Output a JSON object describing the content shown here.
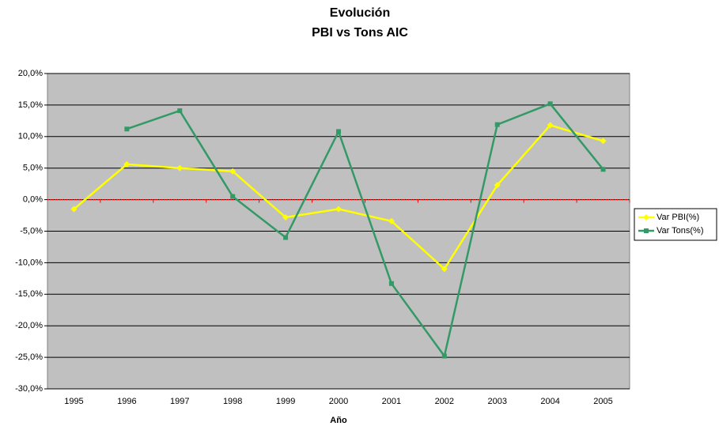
{
  "chart_data": {
    "type": "line",
    "title": "Evolución",
    "subtitle": "PBI vs Tons AIC",
    "x_label": "Año",
    "categories": [
      "1995",
      "1996",
      "1997",
      "1998",
      "1999",
      "2000",
      "2001",
      "2002",
      "2003",
      "2004",
      "2005"
    ],
    "series": [
      {
        "name": "Var PBI(%)",
        "color": "#ffff00",
        "marker": "diamond",
        "values": [
          -1.5,
          5.6,
          5.0,
          4.5,
          -2.8,
          -1.5,
          -3.4,
          -11.0,
          2.3,
          11.8,
          9.3
        ]
      },
      {
        "name": "Var Tons(%)",
        "color": "#339966",
        "marker": "square",
        "values": [
          null,
          11.2,
          14.1,
          0.5,
          -6.0,
          10.8,
          -13.3,
          -24.8,
          11.9,
          15.2,
          4.8
        ]
      }
    ],
    "ylim": [
      -30,
      20
    ],
    "yticks": [
      {
        "value": -30,
        "label": "-30,0%"
      },
      {
        "value": -25,
        "label": "-25,0%"
      },
      {
        "value": -20,
        "label": "-20,0%"
      },
      {
        "value": -15,
        "label": "-15,0%"
      },
      {
        "value": -10,
        "label": "-10,0%"
      },
      {
        "value": -5,
        "label": "-5,0%"
      },
      {
        "value": 0,
        "label": "0,0%"
      },
      {
        "value": 5,
        "label": "5,0%"
      },
      {
        "value": 10,
        "label": "10,0%"
      },
      {
        "value": 15,
        "label": "15,0%"
      },
      {
        "value": 20,
        "label": "20,0%"
      }
    ],
    "grid": true,
    "legend": "right",
    "plot_background": "#c0c0c0"
  }
}
